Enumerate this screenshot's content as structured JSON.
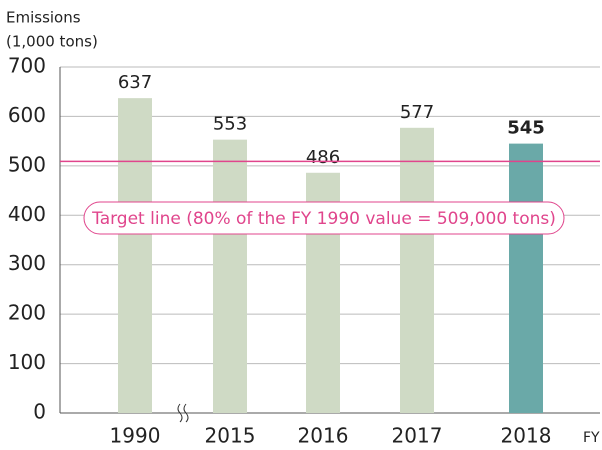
{
  "chart_data": {
    "type": "bar",
    "ylabel": [
      "Emissions",
      "(1,000 tons)"
    ],
    "xlabel": "FY",
    "categories": [
      "1990",
      "2015",
      "2016",
      "2017",
      "2018"
    ],
    "values": [
      637,
      553,
      486,
      577,
      545
    ],
    "colors": [
      "#cfdac5",
      "#cfdac5",
      "#cfdac5",
      "#cfdac5",
      "#6aa9a8"
    ],
    "bold_labels": [
      false,
      false,
      false,
      false,
      true
    ],
    "ylim": [
      0,
      700
    ],
    "yticks": [
      0,
      100,
      200,
      300,
      400,
      500,
      600,
      700
    ],
    "grid": true,
    "target": {
      "value": 509,
      "label": "Target line (80% of the FY 1990 value = 509,000 tons)",
      "color": "#e0458c"
    }
  }
}
